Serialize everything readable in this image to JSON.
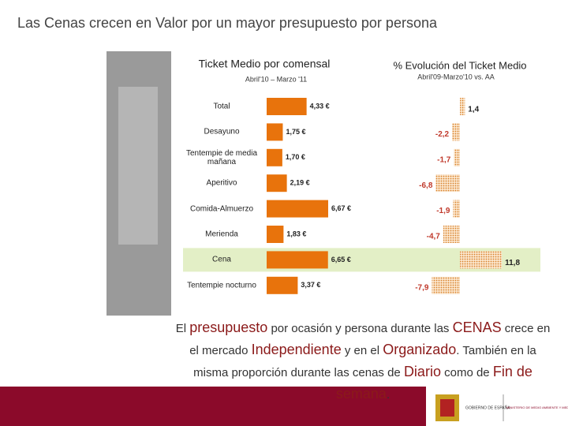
{
  "title": "Las Cenas crecen en Valor por un mayor presupuesto por persona",
  "chart_data": [
    {
      "type": "hbar",
      "title": "Ticket Medio por comensal",
      "subtitle": "Abril'10 – Marzo '11",
      "categories": [
        "Total",
        "Desayuno",
        "Tentempie de media mañana",
        "Aperitivo",
        "Comida-Almuerzo",
        "Merienda",
        "Cena",
        "Tentempie nocturno"
      ],
      "values": [
        4.33,
        1.75,
        1.7,
        2.19,
        6.67,
        1.83,
        6.65,
        3.37
      ],
      "value_labels": [
        "4,33 €",
        "1,75 €",
        "1,70 €",
        "2,19 €",
        "6,67 €",
        "1,83 €",
        "6,65 €",
        "3,37 €"
      ],
      "color": "#e8730c",
      "highlight_index": 6
    },
    {
      "type": "hbar-dotted",
      "title": "% Evolución del Ticket Medio",
      "subtitle": "Abril'09-Marzo'10 vs. AA",
      "values": [
        1.4,
        -2.2,
        -1.7,
        -6.8,
        -1.9,
        -4.7,
        11.8,
        -7.9
      ],
      "value_labels": [
        "1,4",
        "-2,2",
        "-1,7",
        "-6,8",
        "-1,9",
        "-4,7",
        "11,8",
        "-7,9"
      ],
      "color": "#e8a060",
      "negative_label_color": "#c0392b"
    }
  ],
  "body": [
    {
      "text": "El ",
      "em": false
    },
    {
      "text": "presupuesto",
      "em": true
    },
    {
      "text": " por ocasión y persona durante las ",
      "em": false
    },
    {
      "text": "CENAS",
      "em": true
    },
    {
      "text": " crece en el mercado ",
      "em": false
    },
    {
      "text": "Independiente",
      "em": true
    },
    {
      "text": " y en el ",
      "em": false
    },
    {
      "text": "Organizado",
      "em": true
    },
    {
      "text": ". También en la misma proporción durante las cenas de ",
      "em": false
    },
    {
      "text": "Diario",
      "em": true
    },
    {
      "text": " como de ",
      "em": false
    },
    {
      "text": "Fin de semana",
      "em": true
    },
    {
      "text": ".",
      "em": false
    }
  ],
  "footer": {
    "logo1": "GOBIERNO DE ESPAÑA",
    "logo2": "MINISTERIO DE MEDIO AMBIENTE Y MEDIO RURAL Y MARINO"
  }
}
